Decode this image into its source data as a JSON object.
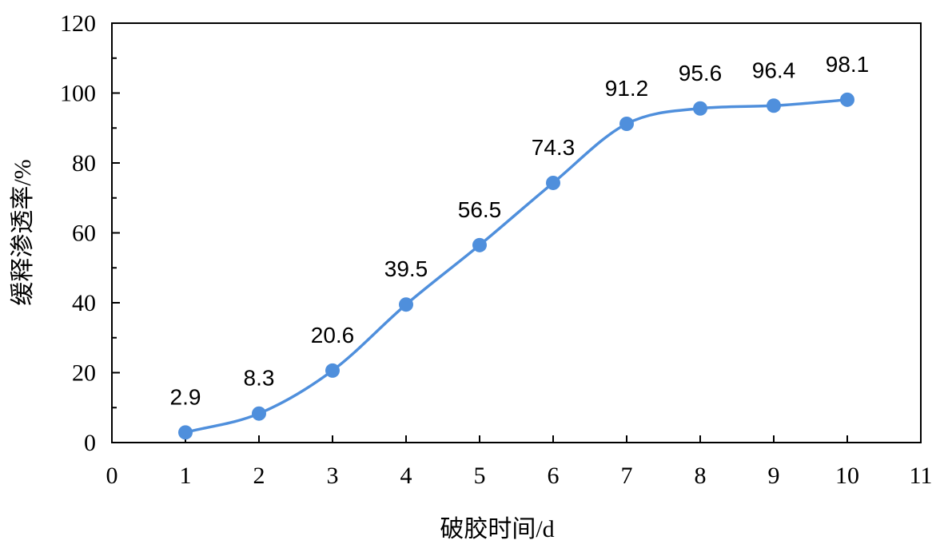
{
  "chart_data": {
    "type": "line",
    "xlabel": "破胶时间/d",
    "ylabel": "缓释渗透率/%",
    "xlim": [
      0,
      11
    ],
    "ylim": [
      0,
      120
    ],
    "xticks": [
      0,
      1,
      2,
      3,
      4,
      5,
      6,
      7,
      8,
      9,
      10,
      11
    ],
    "yticks": [
      0,
      20,
      40,
      60,
      80,
      100,
      120
    ],
    "grid": false,
    "smooth": true,
    "x": [
      1,
      2,
      3,
      4,
      5,
      6,
      7,
      8,
      9,
      10
    ],
    "series": [
      {
        "values": [
          2.9,
          8.3,
          20.6,
          39.5,
          56.5,
          74.3,
          91.2,
          95.6,
          96.4,
          98.1
        ],
        "labels": [
          "2.9",
          "8.3",
          "20.6",
          "39.5",
          "56.5",
          "74.3",
          "91.2",
          "95.6",
          "96.4",
          "98.1"
        ],
        "color": "#4f8fdc"
      }
    ]
  }
}
